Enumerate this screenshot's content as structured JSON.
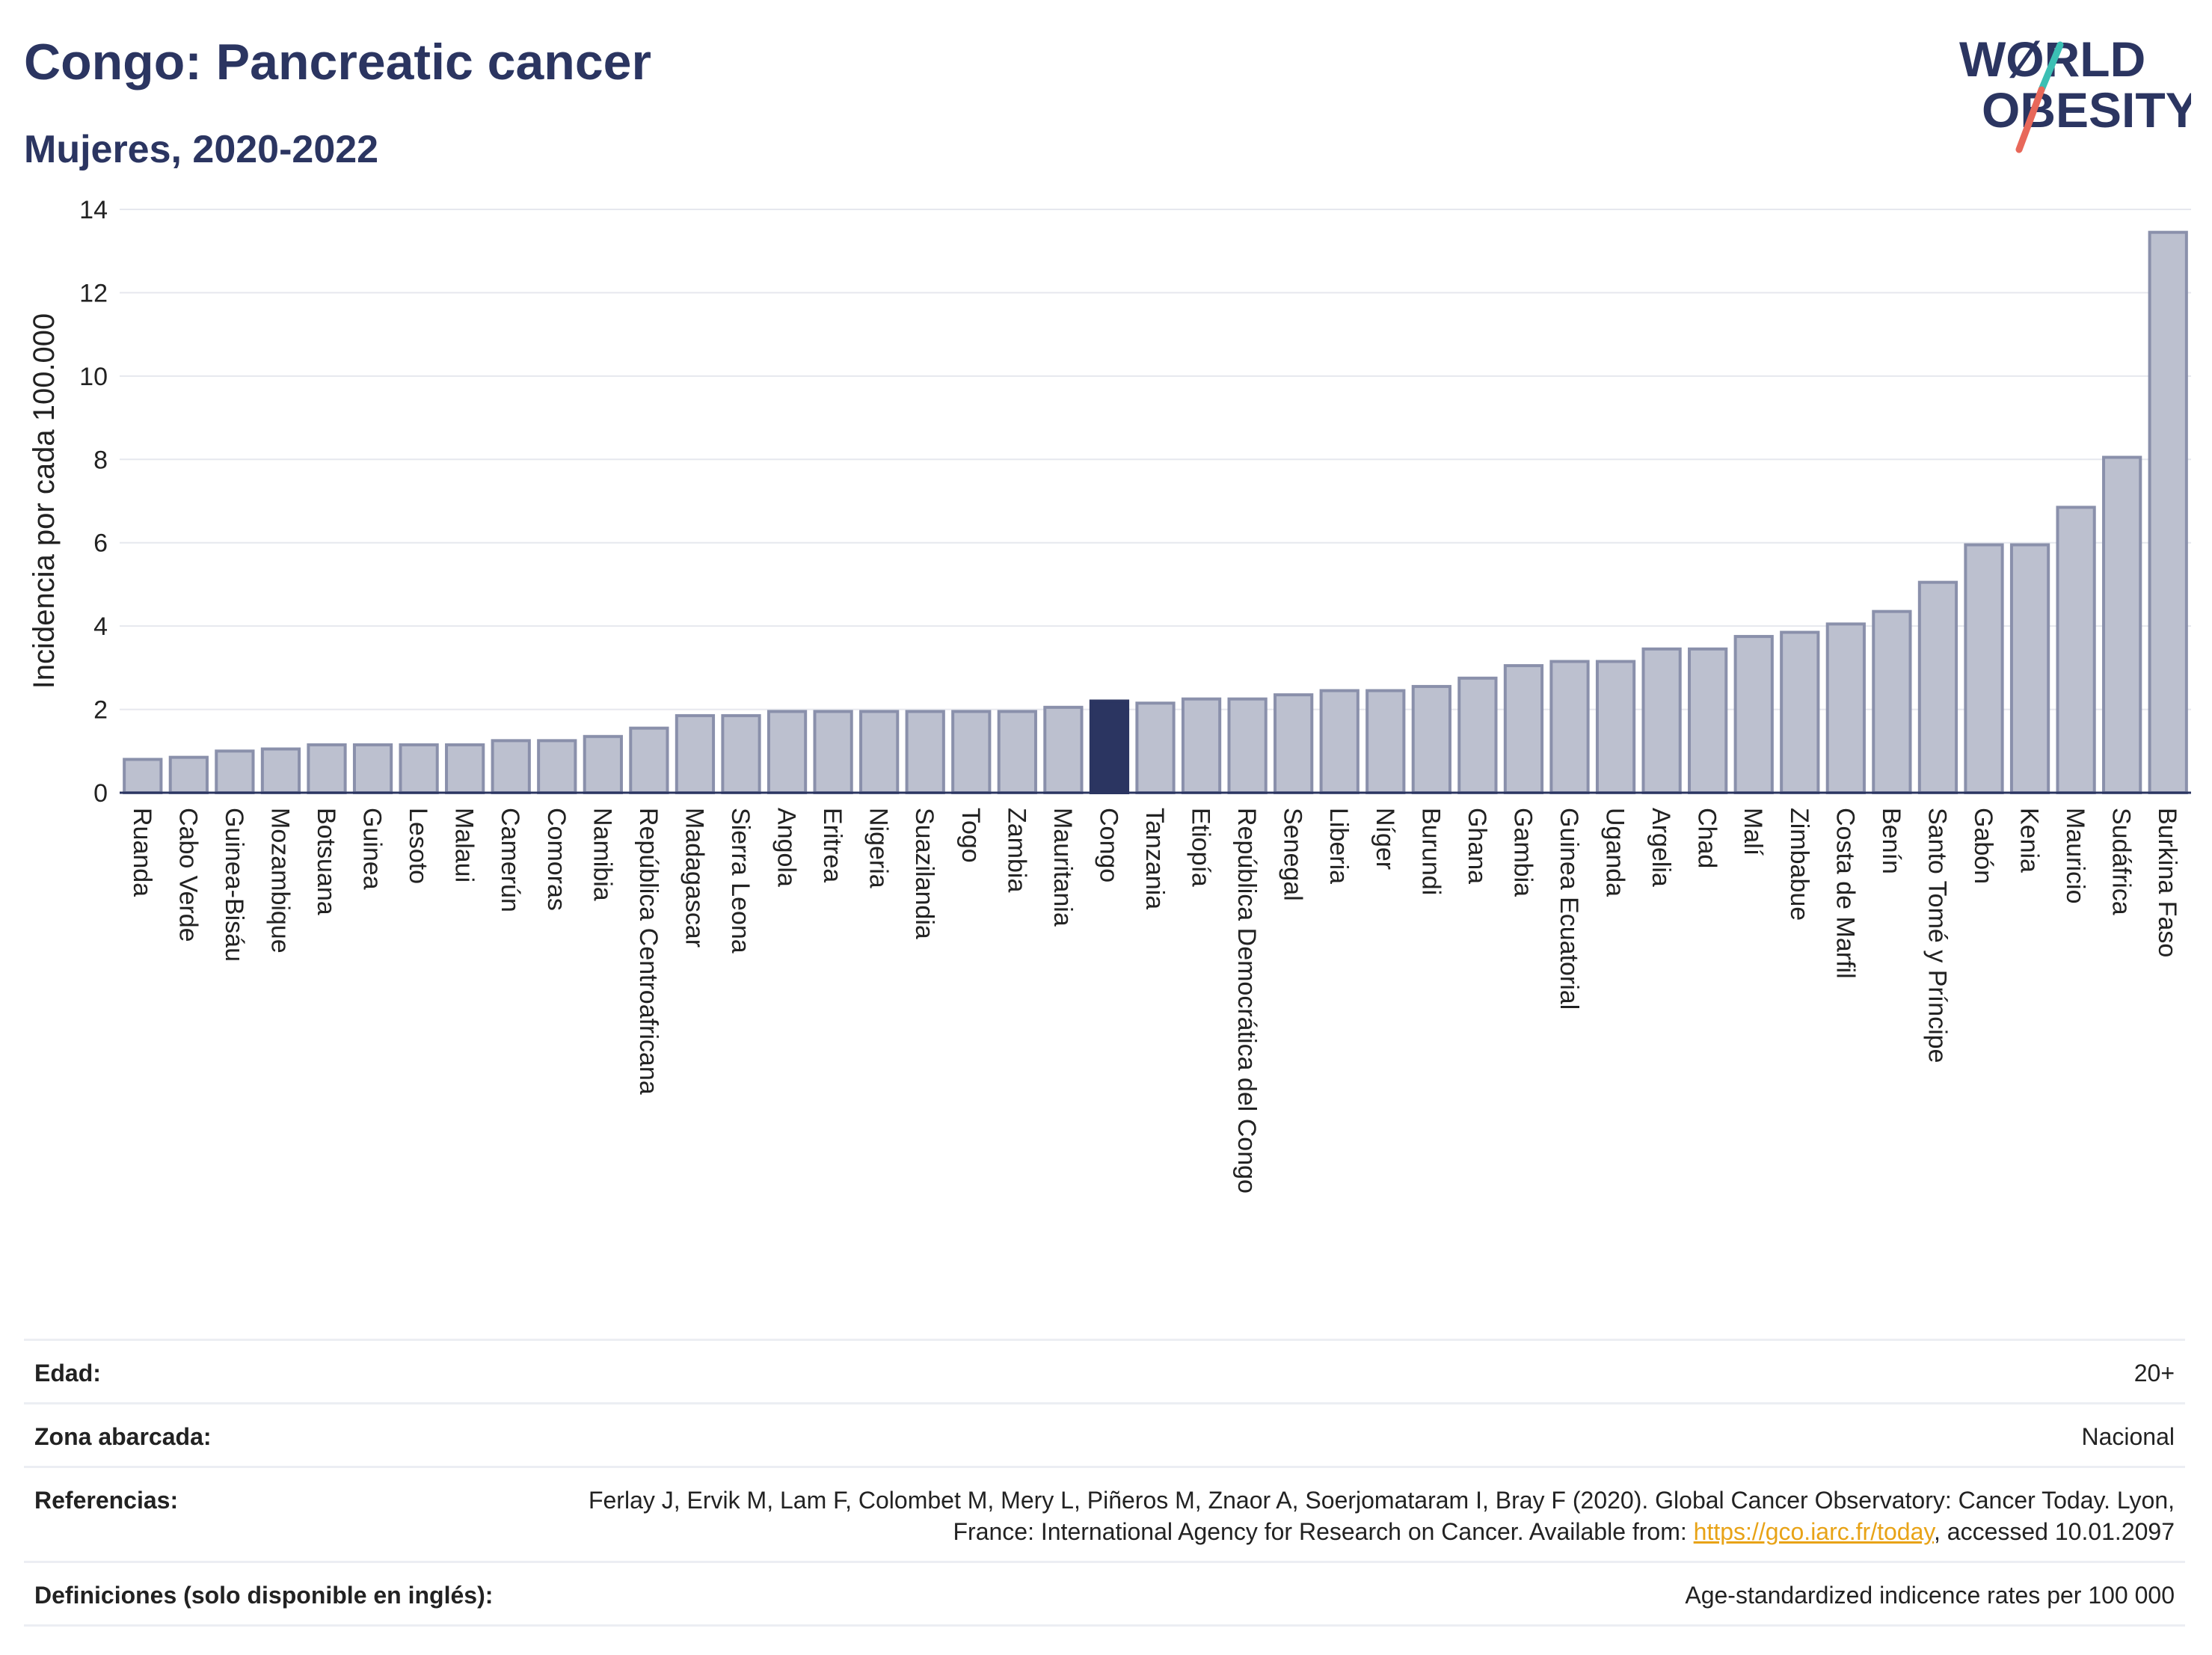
{
  "header": {
    "title": "Congo: Pancreatic cancer",
    "subtitle": "Mujeres, 2020-2022"
  },
  "logo": {
    "line1": "WØRLD",
    "line2": "OBESITY",
    "text_color": "#2b3561",
    "slash_colors": [
      "#3cbfb4",
      "#e8685a"
    ]
  },
  "colors": {
    "bar": "#bcc0cf",
    "bar_border": "#8a90ab",
    "highlight": "#2b3561",
    "grid": "#e6e8ee"
  },
  "chart_data": {
    "type": "bar",
    "ylabel": "Incidencia por cada 100.000",
    "xlabel": "",
    "ylim": [
      0,
      14
    ],
    "yticks": [
      0,
      2,
      4,
      6,
      8,
      10,
      12,
      14
    ],
    "grid": true,
    "highlight": "Congo",
    "categories": [
      "Ruanda",
      "Cabo Verde",
      "Guinea-Bisáu",
      "Mozambique",
      "Botsuana",
      "Guinea",
      "Lesoto",
      "Malaui",
      "Camerún",
      "Comoras",
      "Namibia",
      "República Centroafricana",
      "Madagascar",
      "Sierra Leona",
      "Angola",
      "Eritrea",
      "Nigeria",
      "Suazilandia",
      "Togo",
      "Zambia",
      "Mauritania",
      "Congo",
      "Tanzania",
      "Etiopía",
      "República Democrática del Congo",
      "Senegal",
      "Liberia",
      "Níger",
      "Burundi",
      "Ghana",
      "Gambia",
      "Guinea Ecuatorial",
      "Uganda",
      "Argelia",
      "Chad",
      "Malí",
      "Zimbabue",
      "Costa de Marfil",
      "Benín",
      "Santo Tomé y Príncipe",
      "Gabón",
      "Kenia",
      "Mauricio",
      "Sudáfrica",
      "Burkina Faso"
    ],
    "values": [
      0.8,
      0.85,
      1.0,
      1.05,
      1.15,
      1.15,
      1.15,
      1.15,
      1.25,
      1.25,
      1.35,
      1.55,
      1.85,
      1.85,
      1.95,
      1.95,
      1.95,
      1.95,
      1.95,
      1.95,
      2.05,
      2.2,
      2.15,
      2.25,
      2.25,
      2.35,
      2.45,
      2.45,
      2.55,
      2.75,
      3.05,
      3.15,
      3.15,
      3.45,
      3.45,
      3.75,
      3.85,
      4.05,
      4.35,
      5.05,
      5.95,
      5.95,
      6.85,
      8.05,
      13.45
    ]
  },
  "info": {
    "rows": [
      {
        "label": "Edad:",
        "value": "20+"
      },
      {
        "label": "Zona abarcada:",
        "value": "Nacional"
      },
      {
        "label": "Referencias:",
        "value_before": "Ferlay J, Ervik M, Lam F, Colombet M, Mery L, Piñeros M, Znaor A, Soerjomataram I, Bray F (2020). Global Cancer Observatory: Cancer Today. Lyon, France: International Agency for Research on Cancer. Available from: ",
        "link": "https://gco.iarc.fr/today",
        "value_after": ", accessed 10.01.2097"
      },
      {
        "label": "Definiciones (solo disponible en inglés):",
        "value": "Age-standardized indicence rates per 100 000"
      }
    ]
  }
}
